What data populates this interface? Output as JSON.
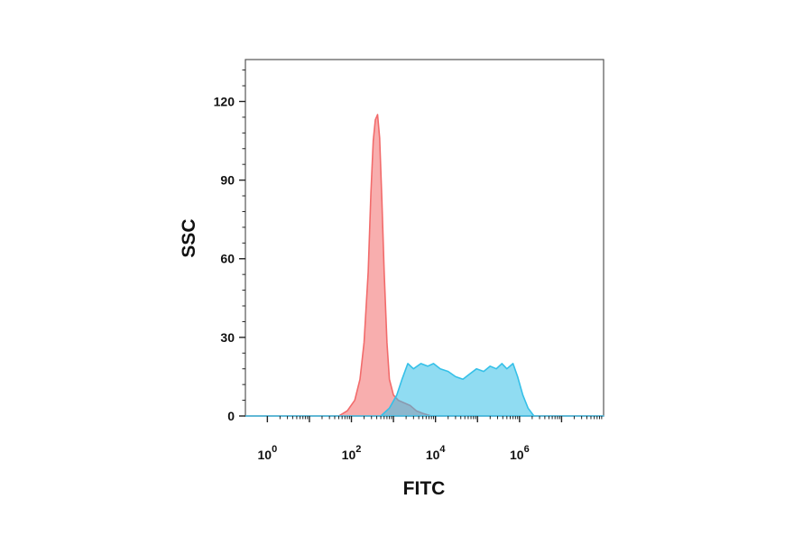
{
  "chart_data": {
    "type": "area",
    "title": "",
    "xlabel": "FITC",
    "ylabel": "SSC",
    "x_scale": "log10",
    "xlim": [
      0.3,
      100000000
    ],
    "ylim": [
      0,
      136
    ],
    "x_ticks": [
      {
        "value": 1,
        "base": "10",
        "exp": "0"
      },
      {
        "value": 100,
        "base": "10",
        "exp": "2"
      },
      {
        "value": 10000,
        "base": "10",
        "exp": "4"
      },
      {
        "value": 1000000,
        "base": "10",
        "exp": "6"
      }
    ],
    "y_ticks": [
      0,
      30,
      60,
      90,
      120
    ],
    "grid": false,
    "legend": "none",
    "series": [
      {
        "color": "#f26b6b",
        "points": [
          [
            0.3,
            0
          ],
          [
            50,
            0
          ],
          [
            80,
            2
          ],
          [
            120,
            6
          ],
          [
            160,
            14
          ],
          [
            200,
            28
          ],
          [
            250,
            55
          ],
          [
            290,
            85
          ],
          [
            330,
            105
          ],
          [
            370,
            113
          ],
          [
            420,
            115
          ],
          [
            470,
            106
          ],
          [
            530,
            82
          ],
          [
            600,
            55
          ],
          [
            700,
            28
          ],
          [
            800,
            14
          ],
          [
            1000,
            8
          ],
          [
            1300,
            6
          ],
          [
            1800,
            5
          ],
          [
            2500,
            4
          ],
          [
            3500,
            2
          ],
          [
            5000,
            1
          ],
          [
            8000,
            0
          ],
          [
            100000000,
            0
          ]
        ]
      },
      {
        "color": "#35c0e8",
        "points": [
          [
            0.3,
            0
          ],
          [
            500,
            0
          ],
          [
            800,
            3
          ],
          [
            1200,
            8
          ],
          [
            1600,
            14
          ],
          [
            2200,
            20
          ],
          [
            3000,
            18
          ],
          [
            4500,
            20
          ],
          [
            6500,
            19
          ],
          [
            9000,
            20
          ],
          [
            13000,
            18
          ],
          [
            20000,
            17
          ],
          [
            30000,
            15
          ],
          [
            45000,
            14
          ],
          [
            65000,
            16
          ],
          [
            95000,
            18
          ],
          [
            140000,
            17
          ],
          [
            200000,
            19
          ],
          [
            280000,
            18
          ],
          [
            380000,
            20
          ],
          [
            500000,
            18
          ],
          [
            700000,
            20
          ],
          [
            900000,
            15
          ],
          [
            1200000,
            8
          ],
          [
            1600000,
            3
          ],
          [
            2200000,
            0
          ],
          [
            100000000,
            0
          ]
        ]
      }
    ]
  }
}
